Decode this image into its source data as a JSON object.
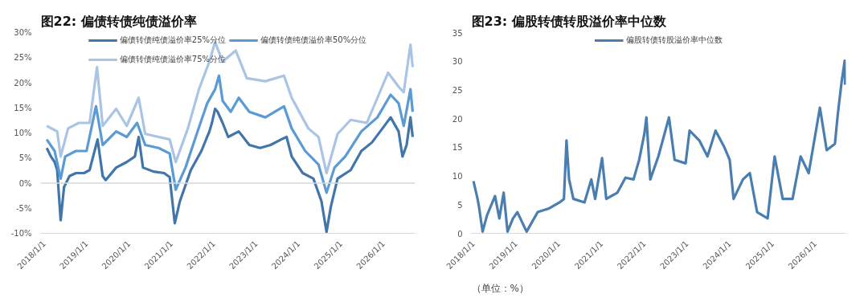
{
  "chart_data": [
    {
      "type": "line",
      "title": "图22: 偏债转债纯债溢价率",
      "legend": "top",
      "grid": false,
      "line_style": "solid",
      "xlim": [
        "2017-12-01",
        "2026-10-01"
      ],
      "ylim": [
        -10,
        30
      ],
      "xticks": [
        {
          "value": "2018-01-01",
          "label": "2018/1/1"
        },
        {
          "value": "2019-01-01",
          "label": "2019/1/1"
        },
        {
          "value": "2020-01-01",
          "label": "2020/1/1"
        },
        {
          "value": "2021-01-01",
          "label": "2021/1/1"
        },
        {
          "value": "2022-01-01",
          "label": "2022/1/1"
        },
        {
          "value": "2023-01-01",
          "label": "2023/1/1"
        },
        {
          "value": "2024-01-01",
          "label": "2024/1/1"
        },
        {
          "value": "2025-01-01",
          "label": "2025/1/1"
        },
        {
          "value": "2026-01-01",
          "label": "2026/1/1"
        }
      ],
      "yticks": [
        {
          "value": -10,
          "label": "-10%"
        },
        {
          "value": -5,
          "label": "-5%"
        },
        {
          "value": 0,
          "label": "0%"
        },
        {
          "value": 5,
          "label": "5%"
        },
        {
          "value": 10,
          "label": "10%"
        },
        {
          "value": 15,
          "label": "15%"
        },
        {
          "value": 20,
          "label": "20%"
        },
        {
          "value": 25,
          "label": "25%"
        },
        {
          "value": 30,
          "label": "30%"
        }
      ],
      "ref_lines": [
        {
          "axis": "y",
          "value": 0,
          "color": "#d9d9d9"
        }
      ],
      "series": [
        {
          "name": "偏债转债纯债溢价率25%分位",
          "color": "#4276aa",
          "x": [
            "2018-01-23",
            "2018-02-28",
            "2018-04-01",
            "2018-04-23",
            "2018-05-23",
            "2018-06-21",
            "2018-08-07",
            "2018-10-01",
            "2018-12-10",
            "2019-01-27",
            "2019-04-06",
            "2019-05-20",
            "2019-06-15",
            "2019-09-13",
            "2019-12-13",
            "2020-02-21",
            "2020-03-25",
            "2020-05-01",
            "2020-07-31",
            "2020-10-30",
            "2020-12-17",
            "2021-01-30",
            "2021-03-15",
            "2021-06-17",
            "2021-09-16",
            "2021-11-24",
            "2021-12-16",
            "2022-01-12",
            "2022-02-03",
            "2022-03-18",
            "2022-05-05",
            "2022-08-04",
            "2022-11-03",
            "2023-02-03",
            "2023-05-05",
            "2023-08-04",
            "2023-09-20",
            "2023-11-03",
            "2024-02-06",
            "2024-05-08",
            "2024-07-16",
            "2024-08-29",
            "2024-10-05",
            "2024-12-02",
            "2025-03-25",
            "2025-06-25",
            "2025-09-24",
            "2025-12-24",
            "2026-03-04",
            "2026-05-12",
            "2026-06-14",
            "2026-07-20",
            "2026-08-22",
            "2026-09-10"
          ],
          "values": [
            7.0,
            5.3,
            4.2,
            2.6,
            -7.4,
            -0.8,
            1.4,
            2.0,
            2.0,
            2.6,
            8.7,
            1.4,
            0.6,
            3.1,
            4.2,
            5.3,
            9.2,
            3.1,
            2.3,
            2.0,
            1.2,
            -8.0,
            -3.6,
            2.6,
            6.4,
            10.3,
            12.0,
            14.8,
            14.2,
            12.0,
            9.2,
            10.3,
            7.6,
            7.0,
            7.6,
            8.7,
            9.2,
            5.3,
            2.0,
            0.9,
            -3.6,
            -9.7,
            -4.7,
            0.9,
            2.6,
            6.4,
            8.1,
            10.9,
            13.1,
            10.3,
            5.3,
            7.6,
            13.1,
            9.2
          ]
        },
        {
          "name": "偏债转债纯债溢价率50%分位",
          "color": "#5b9bd5",
          "x": [
            "2018-01-23",
            "2018-04-01",
            "2018-05-23",
            "2018-07-01",
            "2018-10-01",
            "2019-01-01",
            "2019-03-23",
            "2019-05-20",
            "2019-09-13",
            "2019-12-13",
            "2020-03-11",
            "2020-05-20",
            "2020-09-13",
            "2020-12-17",
            "2021-02-07",
            "2021-05-02",
            "2021-08-07",
            "2021-11-05",
            "2022-01-12",
            "2022-02-15",
            "2022-03-18",
            "2022-05-27",
            "2022-08-04",
            "2022-11-03",
            "2023-03-21",
            "2023-08-29",
            "2023-11-03",
            "2024-02-27",
            "2024-06-21",
            "2024-08-29",
            "2024-11-06",
            "2025-02-06",
            "2025-06-25",
            "2025-11-10",
            "2026-03-04",
            "2026-05-12",
            "2026-06-25",
            "2026-08-22",
            "2026-09-10"
          ],
          "values": [
            8.7,
            6.4,
            0.9,
            5.3,
            6.4,
            6.4,
            15.3,
            7.6,
            10.3,
            9.2,
            12.0,
            7.6,
            7.0,
            5.9,
            -1.3,
            3.1,
            9.8,
            15.9,
            18.7,
            21.4,
            16.4,
            14.2,
            17.0,
            14.2,
            13.1,
            15.3,
            10.9,
            6.4,
            3.7,
            -1.9,
            3.1,
            5.3,
            10.3,
            13.1,
            17.6,
            15.9,
            11.4,
            18.7,
            14.2
          ]
        },
        {
          "name": "偏债转债纯债溢价率75%分位",
          "color": "#a9c4e4",
          "x": [
            "2018-01-23",
            "2018-04-23",
            "2018-05-23",
            "2018-07-26",
            "2018-10-26",
            "2019-01-27",
            "2019-04-01",
            "2019-05-20",
            "2019-09-13",
            "2019-12-13",
            "2020-03-25",
            "2020-05-20",
            "2020-09-13",
            "2020-12-17",
            "2021-02-07",
            "2021-05-23",
            "2021-08-26",
            "2021-11-24",
            "2022-01-12",
            "2022-03-18",
            "2022-07-09",
            "2022-10-12",
            "2023-03-21",
            "2023-08-29",
            "2023-11-03",
            "2024-03-25",
            "2024-06-21",
            "2024-08-29",
            "2024-12-02",
            "2025-03-25",
            "2025-08-11",
            "2026-02-10",
            "2026-05-12",
            "2026-06-25",
            "2026-08-22",
            "2026-09-10"
          ],
          "values": [
            11.4,
            10.3,
            5.3,
            10.9,
            12.0,
            12.0,
            23.1,
            11.4,
            14.8,
            11.4,
            17.0,
            9.8,
            9.2,
            8.7,
            4.2,
            10.9,
            18.7,
            24.2,
            28.1,
            24.2,
            26.4,
            20.9,
            20.3,
            21.4,
            17.0,
            10.9,
            9.2,
            2.0,
            9.8,
            12.6,
            12.0,
            22.0,
            19.2,
            18.1,
            27.6,
            23.1
          ]
        }
      ]
    },
    {
      "type": "line",
      "title": "图23: 偏股转债转股溢价率中位数",
      "legend": "top",
      "grid": false,
      "line_style": "solid",
      "annotations": [
        "（单位：%）"
      ],
      "xlim": [
        "2017-12-15",
        "2026-09-20"
      ],
      "ylim": [
        0,
        35
      ],
      "xticks": [
        {
          "value": "2018-01-01",
          "label": "2018/1/1"
        },
        {
          "value": "2019-01-01",
          "label": "2019/1/1"
        },
        {
          "value": "2020-01-01",
          "label": "2020/1/1"
        },
        {
          "value": "2021-01-01",
          "label": "2021/1/1"
        },
        {
          "value": "2022-01-01",
          "label": "2022/1/1"
        },
        {
          "value": "2023-01-01",
          "label": "2023/1/1"
        },
        {
          "value": "2024-01-01",
          "label": "2024/1/1"
        },
        {
          "value": "2025-01-01",
          "label": "2025/1/1"
        },
        {
          "value": "2026-01-01",
          "label": "2026/1/1"
        }
      ],
      "yticks": [
        0,
        5,
        10,
        15,
        20,
        25,
        30,
        35
      ],
      "series": [
        {
          "name": "偏股转债转股溢价率中位数",
          "color": "#4a7eb0",
          "x": [
            "2018-01-02",
            "2018-02-06",
            "2018-02-17",
            "2018-03-21",
            "2018-04-27",
            "2018-07-05",
            "2018-08-11",
            "2018-09-17",
            "2018-10-20",
            "2018-12-06",
            "2019-01-12",
            "2019-04-01",
            "2019-07-05",
            "2019-10-05",
            "2020-01-08",
            "2020-02-14",
            "2020-03-07",
            "2020-03-29",
            "2020-05-05",
            "2020-08-08",
            "2020-10-05",
            "2020-11-07",
            "2021-01-05",
            "2021-02-10",
            "2021-05-16",
            "2021-07-24",
            "2021-10-01",
            "2021-11-18",
            "2022-01-01",
            "2022-01-19",
            "2022-02-21",
            "2022-05-01",
            "2022-07-31",
            "2022-09-17",
            "2022-12-20",
            "2023-01-23",
            "2023-04-16",
            "2023-06-25",
            "2023-09-02",
            "2023-11-14",
            "2024-01-01",
            "2024-02-03",
            "2024-04-23",
            "2024-06-21",
            "2024-08-22",
            "2024-11-20",
            "2025-01-19",
            "2025-03-29",
            "2025-06-21",
            "2025-08-29",
            "2025-11-06",
            "2026-02-10",
            "2026-04-09",
            "2026-06-18",
            "2026-07-13",
            "2026-08-15",
            "2026-09-10",
            "2026-09-13"
          ],
          "values": [
            9.1,
            6.0,
            4.8,
            0.3,
            3.1,
            6.5,
            2.6,
            7.1,
            0.3,
            2.6,
            3.7,
            0.3,
            3.7,
            4.3,
            5.4,
            6.0,
            16.2,
            9.4,
            6.0,
            5.4,
            9.4,
            6.0,
            13.1,
            6.0,
            7.1,
            9.7,
            9.4,
            12.8,
            17.3,
            20.2,
            9.4,
            13.4,
            20.2,
            12.8,
            12.2,
            17.9,
            16.2,
            13.4,
            17.9,
            15.1,
            12.8,
            6.0,
            9.4,
            10.5,
            3.7,
            2.6,
            13.4,
            6.0,
            6.0,
            13.4,
            10.5,
            21.9,
            14.5,
            15.6,
            20.8,
            26.5,
            30.1,
            25.9
          ]
        }
      ]
    }
  ]
}
